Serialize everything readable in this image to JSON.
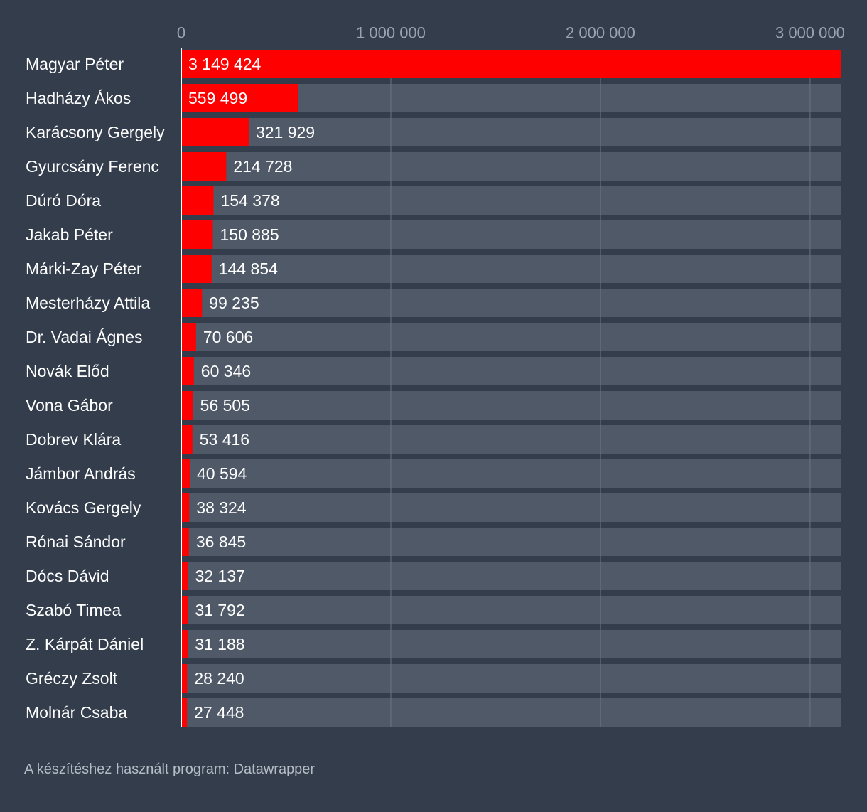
{
  "colors": {
    "background": "#333d4c",
    "track": "#4f5968",
    "bar": "#ff0000",
    "gridline": "#6b7482",
    "axis": "#ffffff"
  },
  "footer": "A készítéshez használt program: Datawrapper",
  "chart_data": {
    "type": "bar",
    "orientation": "horizontal",
    "xlim": [
      0,
      3149424
    ],
    "ticks": [
      {
        "value": 0,
        "label": "0"
      },
      {
        "value": 1000000,
        "label": "1 000 000"
      },
      {
        "value": 2000000,
        "label": "2 000 000"
      },
      {
        "value": 3000000,
        "label": "3 000 000"
      }
    ],
    "grid": true,
    "categories": [
      "Magyar Péter",
      "Hadházy Ákos",
      "Karácsony Gergely",
      "Gyurcsány Ferenc",
      "Dúró Dóra",
      "Jakab Péter",
      "Márki-Zay Péter",
      "Mesterházy Attila",
      "Dr. Vadai Ágnes",
      "Novák Előd",
      "Vona Gábor",
      "Dobrev Klára",
      "Jámbor András",
      "Kovács Gergely",
      "Rónai Sándor",
      "Dócs Dávid",
      "Szabó Timea",
      "Z. Kárpát Dániel",
      "Gréczy Zsolt",
      "Molnár Csaba"
    ],
    "values": [
      3149424,
      559499,
      321929,
      214728,
      154378,
      150885,
      144854,
      99235,
      70606,
      60346,
      56505,
      53416,
      40594,
      38324,
      36845,
      32137,
      31792,
      31188,
      28240,
      27448
    ],
    "value_labels": [
      "3 149 424",
      "559 499",
      "321 929",
      "214 728",
      "154 378",
      "150 885",
      "144 854",
      "99 235",
      "70 606",
      "60 346",
      "56 505",
      "53 416",
      "40 594",
      "38 324",
      "36 845",
      "32 137",
      "31 792",
      "31 188",
      "28 240",
      "27 448"
    ]
  }
}
